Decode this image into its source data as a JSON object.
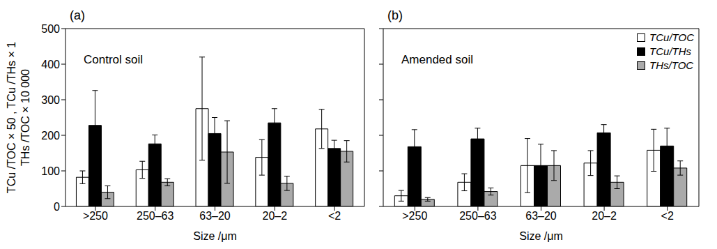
{
  "chart_data": [
    {
      "type": "bar",
      "title": "(a)",
      "annotation": "Control soil",
      "categories": [
        ">250",
        "250–63",
        "63–20",
        "20–2",
        "<2"
      ],
      "x_label": "Size /μm",
      "y_label": [
        "TCu /TOC × 50 , TCu /THs × 1",
        "THs /TOC × 10 000"
      ],
      "ylim": [
        0,
        500
      ],
      "yticks": [
        0,
        100,
        200,
        300,
        400,
        500
      ],
      "series": [
        {
          "name": "TCu/TOC",
          "color": "#ffffff",
          "values": [
            82,
            103,
            275,
            138,
            218
          ],
          "errors": [
            18,
            24,
            145,
            50,
            55
          ]
        },
        {
          "name": "TCu/THs",
          "color": "#000000",
          "values": [
            228,
            176,
            205,
            235,
            163
          ],
          "errors": [
            98,
            25,
            45,
            40,
            23
          ]
        },
        {
          "name": "THs/TOC",
          "color": "#aaaaaa",
          "values": [
            40,
            68,
            153,
            65,
            155
          ],
          "errors": [
            18,
            10,
            88,
            20,
            30
          ]
        }
      ]
    },
    {
      "type": "bar",
      "title": "(b)",
      "annotation": "Amended soil",
      "categories": [
        ">250",
        "250–63",
        "63–20",
        "20–2",
        "<2"
      ],
      "x_label": "Size /μm",
      "ylim": [
        0,
        500
      ],
      "yticks": [
        0,
        100,
        200,
        300,
        400,
        500
      ],
      "tick_labels": "x",
      "legend": "top right",
      "series": [
        {
          "name": "TCu/TOC",
          "color": "#ffffff",
          "values": [
            30,
            68,
            115,
            122,
            158
          ],
          "errors": [
            15,
            24,
            76,
            35,
            59
          ]
        },
        {
          "name": "TCu/THs",
          "color": "#000000",
          "values": [
            168,
            190,
            115,
            207,
            170
          ],
          "errors": [
            48,
            30,
            60,
            23,
            50
          ]
        },
        {
          "name": "THs/TOC",
          "color": "#aaaaaa",
          "values": [
            20,
            42,
            115,
            68,
            108
          ],
          "errors": [
            5,
            10,
            42,
            18,
            20
          ]
        }
      ]
    }
  ]
}
